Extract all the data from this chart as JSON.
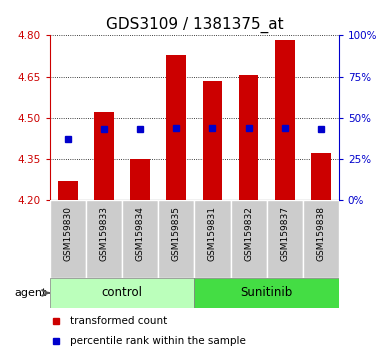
{
  "title": "GDS3109 / 1381375_at",
  "samples": [
    "GSM159830",
    "GSM159833",
    "GSM159834",
    "GSM159835",
    "GSM159831",
    "GSM159832",
    "GSM159837",
    "GSM159838"
  ],
  "bar_tops": [
    4.27,
    4.52,
    4.35,
    4.73,
    4.635,
    4.655,
    4.785,
    4.37
  ],
  "bar_base": 4.2,
  "percentile_values": [
    37,
    43,
    43,
    44,
    44,
    44,
    44,
    43
  ],
  "ylim_left": [
    4.2,
    4.8
  ],
  "ylim_right": [
    0,
    100
  ],
  "yticks_left": [
    4.2,
    4.35,
    4.5,
    4.65,
    4.8
  ],
  "yticks_right": [
    0,
    25,
    50,
    75,
    100
  ],
  "bar_color": "#cc0000",
  "blue_color": "#0000cc",
  "control_label": "control",
  "sunitinib_label": "Sunitinib",
  "agent_label": "agent",
  "legend_bar_label": "transformed count",
  "legend_dot_label": "percentile rank within the sample",
  "control_bg": "#bbffbb",
  "sunitinib_bg": "#44dd44",
  "sample_bg": "#cccccc",
  "title_fontsize": 11,
  "bar_width": 0.55,
  "n_control": 4,
  "n_sunitinib": 4
}
